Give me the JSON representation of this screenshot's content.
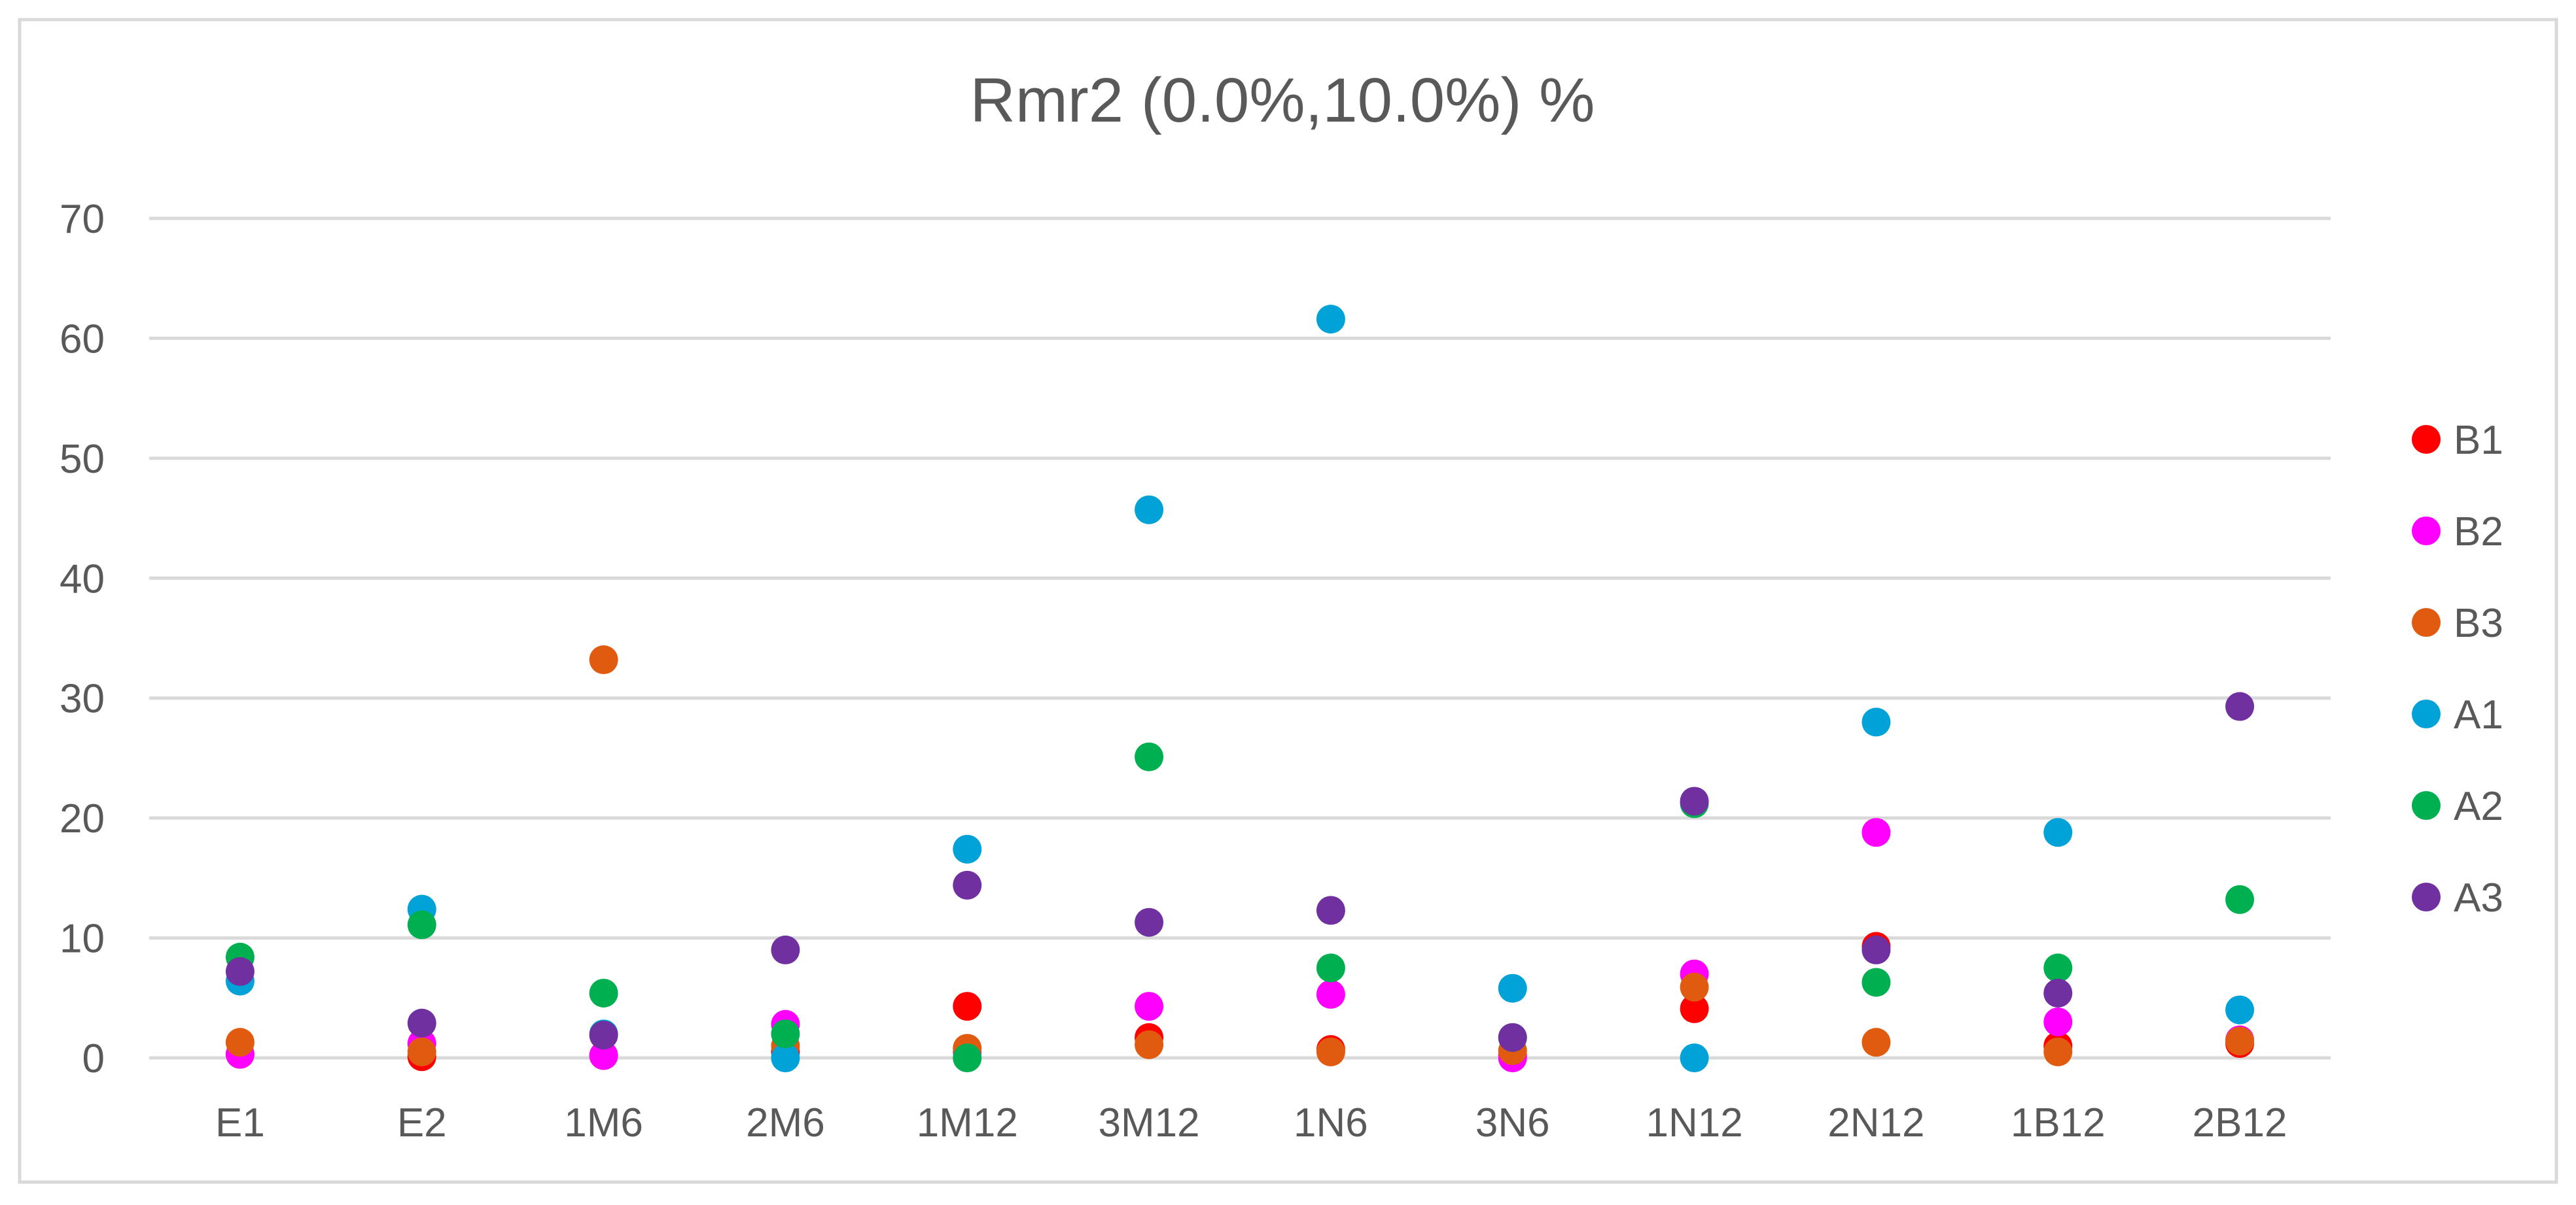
{
  "chart_data": {
    "type": "scatter",
    "title": "Rmr2 (0.0%,10.0%)  %",
    "xlabel": "",
    "ylabel": "",
    "ylim": [
      0,
      70
    ],
    "yticks": [
      "0",
      "10",
      "20",
      "30",
      "40",
      "50",
      "60",
      "70"
    ],
    "grid": true,
    "legend_position": "right",
    "categories": [
      "E1",
      "E2",
      "1M6",
      "2M6",
      "1M12",
      "3M12",
      "1N6",
      "3N6",
      "1N12",
      "2N12",
      "1B12",
      "2B12"
    ],
    "series": [
      {
        "name": "B1",
        "color": "#FF0000",
        "values": [
          0.3,
          0.1,
          0.2,
          0.5,
          4.3,
          1.7,
          0.7,
          0.2,
          4.1,
          9.3,
          1.0,
          1.2
        ]
      },
      {
        "name": "B2",
        "color": "#FF00FF",
        "values": [
          0.3,
          1.2,
          0.2,
          2.8,
          0.5,
          4.3,
          5.3,
          0.0,
          7.0,
          18.8,
          3.0,
          1.5
        ]
      },
      {
        "name": "B3",
        "color": "#E05A10",
        "values": [
          1.3,
          0.5,
          33.2,
          1.0,
          0.8,
          1.1,
          0.5,
          0.6,
          5.9,
          1.3,
          0.5,
          1.4
        ]
      },
      {
        "name": "A1",
        "color": "#00A2D8",
        "values": [
          6.4,
          12.4,
          2.0,
          0.0,
          17.4,
          45.7,
          61.6,
          5.8,
          0.0,
          28.0,
          18.8,
          4.0
        ]
      },
      {
        "name": "A2",
        "color": "#00B050",
        "values": [
          8.4,
          11.1,
          5.4,
          2.0,
          0.0,
          25.1,
          7.5,
          1.7,
          21.2,
          6.3,
          7.5,
          13.2
        ]
      },
      {
        "name": "A3",
        "color": "#7030A0",
        "values": [
          7.2,
          2.9,
          1.9,
          9.0,
          14.4,
          11.3,
          12.3,
          1.7,
          21.4,
          9.0,
          5.4,
          29.3
        ]
      }
    ]
  }
}
